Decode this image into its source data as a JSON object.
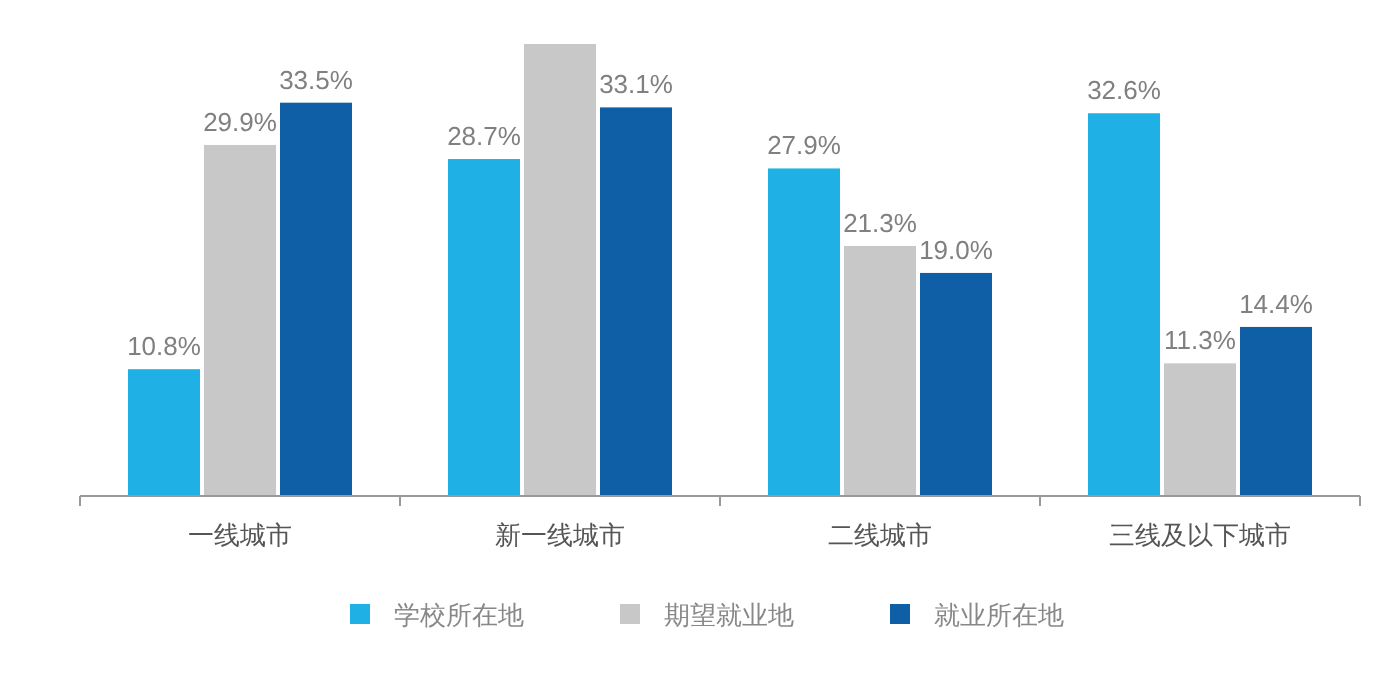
{
  "chart_data": {
    "type": "bar",
    "categories": [
      "一线城市",
      "新一线城市",
      "二线城市",
      "三线及以下城市"
    ],
    "series": [
      {
        "name": "学校所在地",
        "color": "#1fb0e6",
        "values": [
          10.8,
          28.7,
          27.9,
          32.6
        ],
        "value_labels": [
          "10.8%",
          "28.7%",
          "27.9%",
          "32.6%"
        ]
      },
      {
        "name": "期望就业地",
        "color": "#c8c8c8",
        "values": [
          29.9,
          38.5,
          21.3,
          11.3
        ],
        "value_labels": [
          "29.9%",
          null,
          "21.3%",
          "11.3%"
        ]
      },
      {
        "name": "就业所在地",
        "color": "#0e5fa6",
        "values": [
          33.5,
          33.1,
          19.0,
          14.4
        ],
        "value_labels": [
          "33.5%",
          "33.1%",
          "19.0%",
          "14.4%"
        ]
      }
    ],
    "legend": "bottom"
  }
}
